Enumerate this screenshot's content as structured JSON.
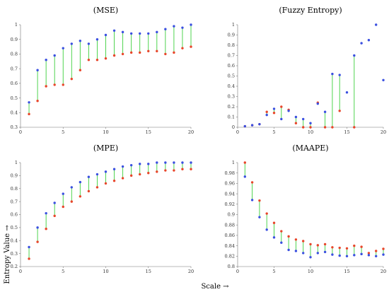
{
  "figure": {
    "ylabel": "Entropy Value →",
    "xlabel": "Scale →"
  },
  "colors": {
    "series_a": "#3a4fe0",
    "series_b": "#e8452a",
    "connector": "#3ccf3c"
  },
  "chart_data": [
    {
      "type": "scatter",
      "title": "(MSE)",
      "x": [
        1,
        2,
        3,
        4,
        5,
        6,
        7,
        8,
        9,
        10,
        11,
        12,
        13,
        14,
        15,
        16,
        17,
        18,
        19,
        20
      ],
      "xlim": [
        0,
        20
      ],
      "xticks": [
        0,
        5,
        10,
        15,
        20
      ],
      "ylim": [
        0.3,
        1.0
      ],
      "yticks": [
        0.3,
        0.4,
        0.5,
        0.6,
        0.7,
        0.8,
        0.9,
        1.0
      ],
      "ytick_labels": [
        "0.3",
        "0.4",
        "0.5",
        "0.6",
        "0.7",
        "0.8",
        "0.9",
        "1"
      ],
      "series": [
        {
          "color": "blue",
          "values": [
            0.47,
            0.69,
            0.76,
            0.79,
            0.84,
            0.87,
            0.89,
            0.87,
            0.9,
            0.93,
            0.96,
            0.95,
            0.94,
            0.94,
            0.94,
            0.95,
            0.97,
            0.99,
            0.98,
            1.0
          ]
        },
        {
          "color": "red",
          "values": [
            0.39,
            0.48,
            0.58,
            0.59,
            0.59,
            0.63,
            0.69,
            0.76,
            0.76,
            0.77,
            0.79,
            0.8,
            0.81,
            0.81,
            0.82,
            0.82,
            0.8,
            0.81,
            0.84,
            0.85
          ]
        }
      ]
    },
    {
      "type": "scatter",
      "title": "(Fuzzy Entropy)",
      "x": [
        1,
        2,
        3,
        4,
        5,
        6,
        7,
        8,
        9,
        10,
        11,
        12,
        13,
        14,
        15,
        16,
        17,
        18,
        19,
        20
      ],
      "xlim": [
        0,
        20
      ],
      "xticks": [
        0,
        5,
        10,
        15,
        20
      ],
      "ylim": [
        0,
        1.0
      ],
      "yticks": [
        0,
        0.1,
        0.2,
        0.3,
        0.4,
        0.5,
        0.6,
        0.7,
        0.8,
        0.9,
        1.0
      ],
      "ytick_labels": [
        "0",
        "0.1",
        "0.2",
        "0.3",
        "0.4",
        "0.5",
        "0.6",
        "0.7",
        "0.8",
        "0.9",
        "1"
      ],
      "series": [
        {
          "color": "blue",
          "values": [
            0.01,
            0.02,
            0.03,
            0.12,
            0.18,
            0.08,
            0.16,
            0.1,
            0.08,
            0.04,
            0.23,
            0.15,
            0.52,
            0.51,
            0.34,
            0.7,
            0.82,
            0.85,
            1.0,
            0.46
          ]
        },
        {
          "color": "red",
          "values": [
            0.01,
            0.02,
            0.03,
            0.15,
            0.14,
            0.2,
            0.17,
            0.04,
            0.0,
            0.0,
            0.24,
            0.0,
            0.0,
            0.16,
            null,
            0.0,
            null,
            null,
            null,
            null
          ]
        }
      ]
    },
    {
      "type": "scatter",
      "title": "(MPE)",
      "x": [
        1,
        2,
        3,
        4,
        5,
        6,
        7,
        8,
        9,
        10,
        11,
        12,
        13,
        14,
        15,
        16,
        17,
        18,
        19,
        20
      ],
      "xlim": [
        0,
        20
      ],
      "xticks": [
        0,
        5,
        10,
        15,
        20
      ],
      "ylim": [
        0.2,
        1.0
      ],
      "yticks": [
        0.2,
        0.3,
        0.4,
        0.5,
        0.6,
        0.7,
        0.8,
        0.9,
        1.0
      ],
      "ytick_labels": [
        "0.2",
        "0.3",
        "0.4",
        "0.5",
        "0.6",
        "0.7",
        "0.8",
        "0.9",
        "1"
      ],
      "series": [
        {
          "color": "blue",
          "values": [
            0.35,
            0.5,
            0.61,
            0.69,
            0.76,
            0.81,
            0.85,
            0.89,
            0.91,
            0.93,
            0.95,
            0.97,
            0.98,
            0.99,
            0.99,
            1.0,
            1.0,
            1.0,
            1.0,
            1.0
          ]
        },
        {
          "color": "red",
          "values": [
            0.26,
            0.39,
            0.49,
            0.59,
            0.66,
            0.7,
            0.74,
            0.78,
            0.81,
            0.84,
            0.86,
            0.88,
            0.9,
            0.91,
            0.92,
            0.93,
            0.94,
            0.94,
            0.95,
            0.95
          ]
        }
      ]
    },
    {
      "type": "scatter",
      "title": "(MAAPE)",
      "x": [
        1,
        2,
        3,
        4,
        5,
        6,
        7,
        8,
        9,
        10,
        11,
        12,
        13,
        14,
        15,
        16,
        17,
        18,
        19,
        20
      ],
      "xlim": [
        0,
        20
      ],
      "xticks": [
        0,
        5,
        10,
        15,
        20
      ],
      "ylim": [
        0.8,
        1.0
      ],
      "yticks": [
        0.8,
        0.82,
        0.84,
        0.86,
        0.88,
        0.9,
        0.92,
        0.94,
        0.96,
        0.98,
        1.0
      ],
      "ytick_labels": [
        "0.8",
        "0.82",
        "0.84",
        "0.86",
        "0.88",
        "0.9",
        "0.92",
        "0.94",
        "0.96",
        "0.98",
        "1"
      ],
      "series": [
        {
          "color": "blue",
          "values": [
            0.973,
            0.928,
            0.895,
            0.871,
            0.856,
            0.846,
            0.832,
            0.83,
            0.826,
            0.818,
            0.826,
            0.828,
            0.823,
            0.821,
            0.82,
            0.822,
            0.824,
            0.822,
            0.82,
            0.823
          ]
        },
        {
          "color": "red",
          "values": [
            1.0,
            0.962,
            0.927,
            0.902,
            0.884,
            0.868,
            0.858,
            0.852,
            0.849,
            0.843,
            0.841,
            0.843,
            0.837,
            0.836,
            0.835,
            0.84,
            0.838,
            0.826,
            0.83,
            0.834
          ]
        }
      ]
    }
  ]
}
